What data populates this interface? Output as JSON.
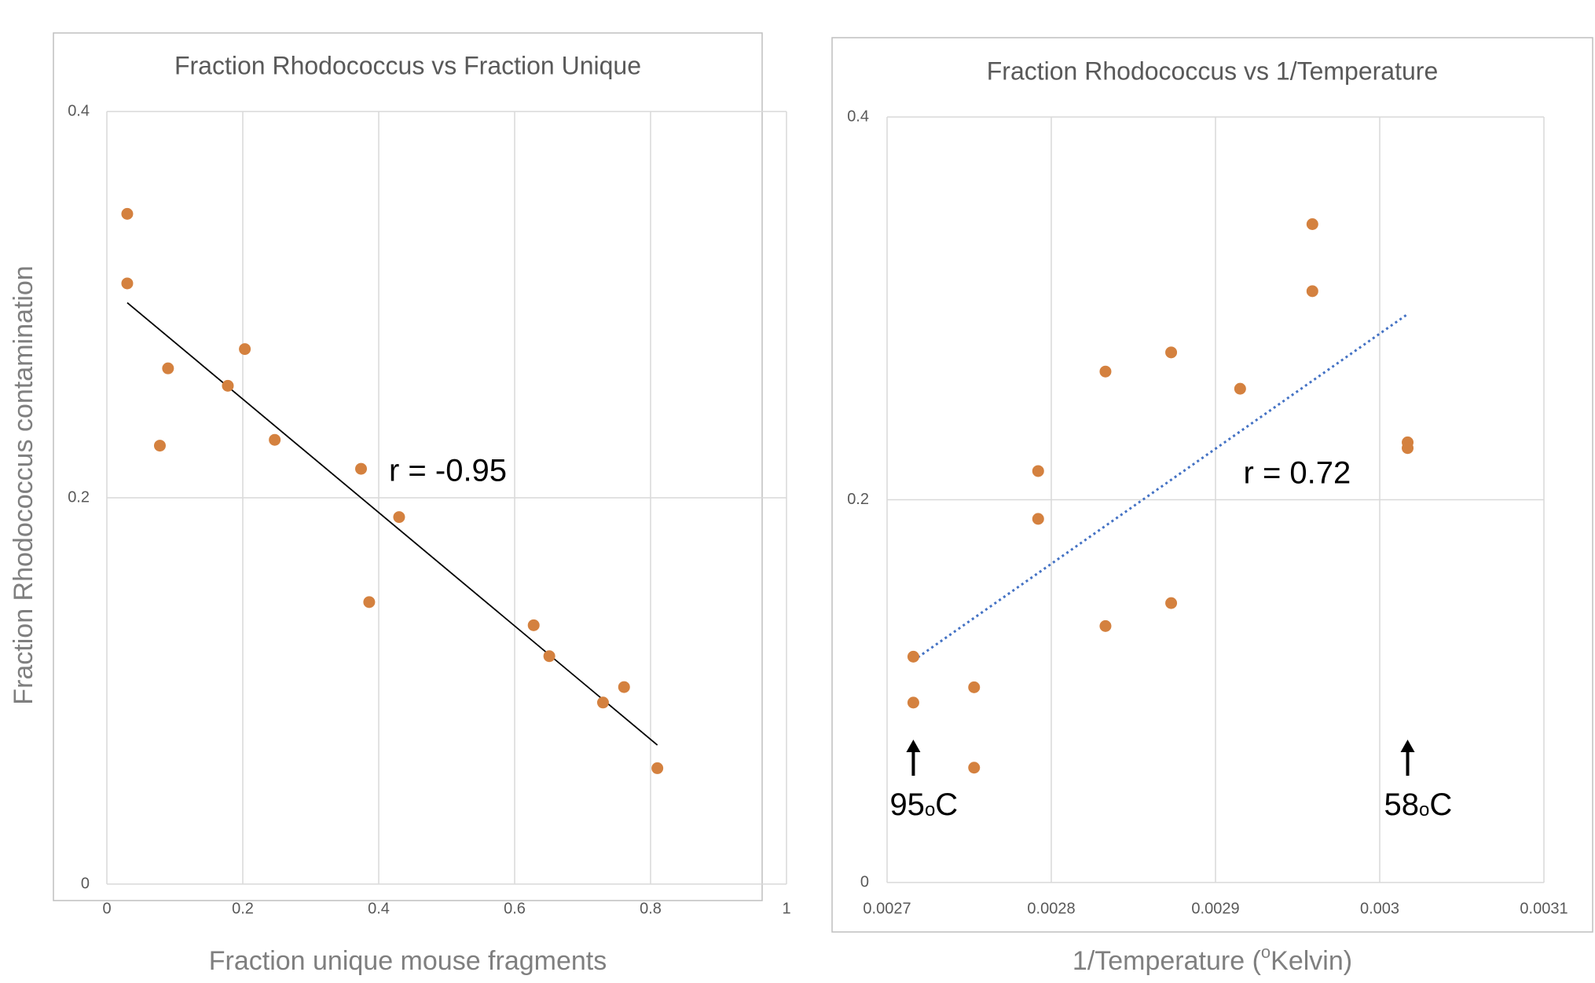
{
  "chart_data": {
    "shared": {
      "ylabel": "Fraction Rhodococcus contamination",
      "point_color": "#D4813F",
      "grid_color": "#D9D9D9",
      "border_color": "#BFBFBF"
    },
    "charts": [
      {
        "type": "scatter",
        "title": "Fraction Rhodococcus vs Fraction Unique",
        "xlabel": "Fraction unique mouse fragments",
        "xlim": [
          0,
          1
        ],
        "ylim": [
          0,
          0.4
        ],
        "x_ticks": [
          0,
          0.2,
          0.4,
          0.6,
          0.8,
          1
        ],
        "x_tick_labels": [
          "0",
          "0.2",
          "0.4",
          "0.6",
          "0.8",
          "1"
        ],
        "y_ticks": [
          0,
          0.2,
          0.4
        ],
        "y_tick_labels": [
          "0",
          "0.2",
          "0.4"
        ],
        "grid": true,
        "points": [
          {
            "x": 0.03,
            "y": 0.347
          },
          {
            "x": 0.03,
            "y": 0.311
          },
          {
            "x": 0.09,
            "y": 0.267
          },
          {
            "x": 0.078,
            "y": 0.227
          },
          {
            "x": 0.178,
            "y": 0.258
          },
          {
            "x": 0.203,
            "y": 0.277
          },
          {
            "x": 0.247,
            "y": 0.23
          },
          {
            "x": 0.374,
            "y": 0.215
          },
          {
            "x": 0.43,
            "y": 0.19
          },
          {
            "x": 0.386,
            "y": 0.146
          },
          {
            "x": 0.628,
            "y": 0.134
          },
          {
            "x": 0.651,
            "y": 0.118
          },
          {
            "x": 0.73,
            "y": 0.094
          },
          {
            "x": 0.761,
            "y": 0.102
          },
          {
            "x": 0.81,
            "y": 0.06
          }
        ],
        "trendline": {
          "style": "solid",
          "color": "#000000",
          "x": [
            0.03,
            0.81
          ],
          "y": [
            0.301,
            0.072
          ]
        },
        "annotation": {
          "text": "r = -0.95",
          "x": 0.415,
          "y": 0.213
        }
      },
      {
        "type": "scatter",
        "title": "Fraction Rhodococcus vs 1/Temperature",
        "xlabel_parts": {
          "pre": "1/Temperature (",
          "sup": "o",
          "post": "Kelvin)"
        },
        "xlim": [
          0.0027,
          0.0031
        ],
        "ylim": [
          0,
          0.4
        ],
        "x_ticks": [
          0.0027,
          0.0028,
          0.0029,
          0.003,
          0.0031
        ],
        "x_tick_labels": [
          "0.0027",
          "0.0028",
          "0.0029",
          "0.003",
          "0.0031"
        ],
        "y_ticks": [
          0,
          0.2,
          0.4
        ],
        "y_tick_labels": [
          "0",
          "0.2",
          "0.4"
        ],
        "grid": true,
        "points": [
          {
            "x": 0.002716,
            "y": 0.118
          },
          {
            "x": 0.002716,
            "y": 0.094
          },
          {
            "x": 0.002753,
            "y": 0.102
          },
          {
            "x": 0.002753,
            "y": 0.06
          },
          {
            "x": 0.002792,
            "y": 0.215
          },
          {
            "x": 0.002792,
            "y": 0.19
          },
          {
            "x": 0.002833,
            "y": 0.267
          },
          {
            "x": 0.002833,
            "y": 0.134
          },
          {
            "x": 0.002873,
            "y": 0.277
          },
          {
            "x": 0.002873,
            "y": 0.146
          },
          {
            "x": 0.002915,
            "y": 0.258
          },
          {
            "x": 0.002959,
            "y": 0.344
          },
          {
            "x": 0.002959,
            "y": 0.309
          },
          {
            "x": 0.003017,
            "y": 0.23
          },
          {
            "x": 0.003017,
            "y": 0.227
          }
        ],
        "trendline": {
          "style": "dotted",
          "color": "#4472C4",
          "x": [
            0.002716,
            0.003017
          ],
          "y": [
            0.116,
            0.297
          ]
        },
        "annotation": {
          "text": "r = 0.72",
          "x": 0.002917,
          "y": 0.213
        },
        "markers": [
          {
            "num": "95",
            "sup": "o",
            "unit": "C",
            "x": 0.002716
          },
          {
            "num": "58",
            "sup": "o",
            "unit": "C",
            "x": 0.003017
          }
        ]
      }
    ]
  }
}
